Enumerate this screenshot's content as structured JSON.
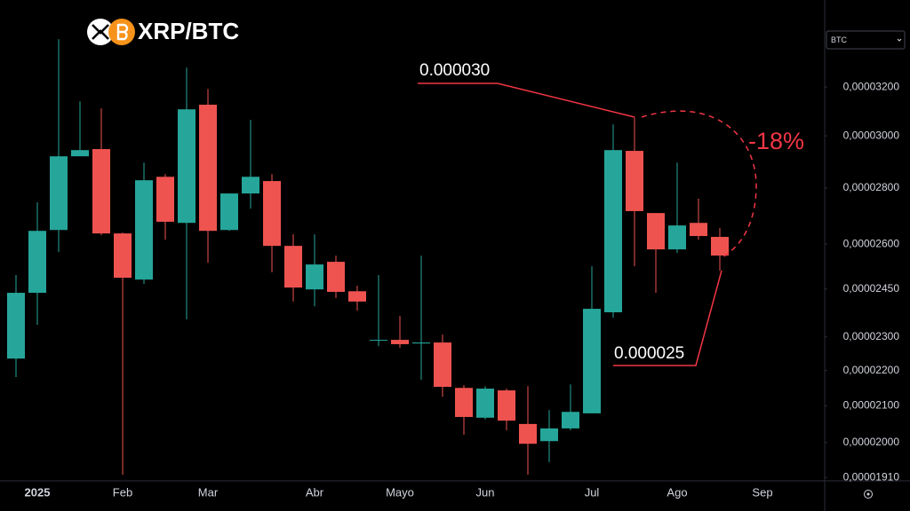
{
  "chart_data": {
    "type": "candlestick",
    "title": "XRP/BTC",
    "currency": "BTC",
    "log_scale": true,
    "grid": false,
    "up_color": "#26a69a",
    "down_color": "#ef5350",
    "ylim": [
      1.906e-05,
      3.59e-05
    ],
    "yticks": [
      {
        "value": 1.91e-05,
        "label": "0,00001910"
      },
      {
        "value": 2e-05,
        "label": "0,00002000"
      },
      {
        "value": 2.1e-05,
        "label": "0,00002100"
      },
      {
        "value": 2.2e-05,
        "label": "0,00002200"
      },
      {
        "value": 2.3e-05,
        "label": "0,00002300"
      },
      {
        "value": 2.45e-05,
        "label": "0,00002450"
      },
      {
        "value": 2.6e-05,
        "label": "0,00002600"
      },
      {
        "value": 2.8e-05,
        "label": "0,00002800"
      },
      {
        "value": 3e-05,
        "label": "0,00003000"
      },
      {
        "value": 3.2e-05,
        "label": "0,00003200"
      }
    ],
    "categories": [
      null,
      "2025",
      null,
      null,
      null,
      "Feb",
      null,
      null,
      null,
      "Mar",
      null,
      null,
      null,
      null,
      "Abr",
      null,
      null,
      null,
      "Mayo",
      null,
      null,
      null,
      "Jun",
      null,
      null,
      null,
      null,
      "Jul",
      null,
      null,
      null,
      "Ago",
      null,
      null,
      null,
      "Sep"
    ],
    "open": [
      2.235e-05,
      2.438e-05,
      2.649e-05,
      2.92e-05,
      2.948e-05,
      2.637e-05,
      2.481e-05,
      2.842e-05,
      2.674e-05,
      3.126e-05,
      2.649e-05,
      2.78e-05,
      2.826e-05,
      2.594e-05,
      2.449e-05,
      2.54e-05,
      2.443e-05,
      2.291e-05,
      2.291e-05,
      2.28e-05,
      2.283e-05,
      2.15e-05,
      2.067e-05,
      2.143e-05,
      2.05e-05,
      2.004e-05,
      2.038e-05,
      2.079e-05,
      2.376e-05,
      2.941e-05,
      2.709e-05,
      2.582e-05,
      2.674e-05,
      2.625e-05,
      null,
      null
    ],
    "high": [
      2.496e-05,
      2.748e-05,
      3.409e-05,
      3.14e-05,
      3.111e-05,
      2.64e-05,
      2.896e-05,
      2.852e-05,
      3.283e-05,
      3.192e-05,
      2.78e-05,
      3.064e-05,
      2.852e-05,
      2.634e-05,
      2.634e-05,
      2.561e-05,
      2.461e-05,
      2.496e-05,
      2.365e-05,
      2.561e-05,
      2.307e-05,
      2.158e-05,
      2.155e-05,
      2.148e-05,
      2.155e-05,
      2.088e-05,
      2.16e-05,
      2.525e-05,
      3.046e-05,
      3.075e-05,
      2.709e-05,
      2.896e-05,
      2.761e-05,
      2.656e-05,
      null,
      null
    ],
    "low": [
      2.181e-05,
      2.337e-05,
      2.573e-05,
      2.92e-05,
      2.631e-05,
      1.917e-05,
      2.467e-05,
      2.615e-05,
      2.354e-05,
      2.537e-05,
      2.646e-05,
      2.725e-05,
      2.505e-05,
      2.41e-05,
      2.395e-05,
      2.421e-05,
      2.381e-05,
      2.272e-05,
      2.267e-05,
      2.173e-05,
      2.125e-05,
      2.021e-05,
      2.062e-05,
      2.033e-05,
      1.917e-05,
      1.949e-05,
      2.033e-05,
      2.079e-05,
      2.359e-05,
      2.525e-05,
      2.438e-05,
      2.57e-05,
      2.615e-05,
      2.51e-05,
      null,
      null
    ],
    "close": [
      2.438e-05,
      2.646e-05,
      2.92e-05,
      2.944e-05,
      2.637e-05,
      2.487e-05,
      2.829e-05,
      2.678e-05,
      3.107e-05,
      2.646e-05,
      2.78e-05,
      2.842e-05,
      2.594e-05,
      2.455e-05,
      2.531e-05,
      2.441e-05,
      2.41e-05,
      2.291e-05,
      2.278e-05,
      2.283e-05,
      2.153e-05,
      2.069e-05,
      2.148e-05,
      2.059e-05,
      1.997e-05,
      2.038e-05,
      2.083e-05,
      2.387e-05,
      2.944e-05,
      2.716e-05,
      2.582e-05,
      2.665e-05,
      2.628e-05,
      2.561e-05,
      null,
      null
    ],
    "annotations": {
      "high_label": "0.000030",
      "low_label": "0.000025",
      "change_label": "-18%"
    }
  }
}
